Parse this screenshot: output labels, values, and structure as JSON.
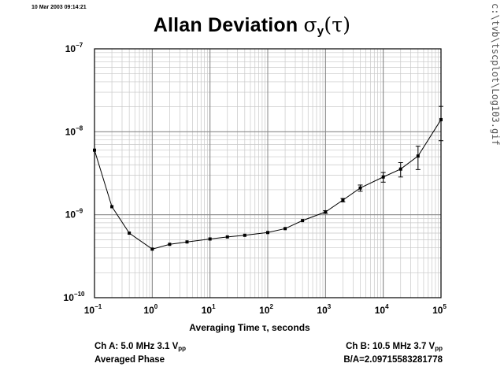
{
  "timestamp": "10 Mar 2003 09:14:21",
  "file_path": "c:\\tvb\\tscplot\\Log103.gif",
  "title": {
    "main": "Allan Deviation ",
    "symbol": "σ",
    "sub": "y",
    "arg": "(τ)"
  },
  "footer": {
    "left_line1_prefix": "Ch A: 5.0 MHz 3.1 V",
    "left_line1_sub": "pp",
    "left_line2": "Averaged Phase",
    "right_line1_prefix": "Ch B: 10.5 MHz 3.7 V",
    "right_line1_sub": "pp",
    "right_line2": "B/A=2.09715583281778"
  },
  "chart_data": {
    "type": "line",
    "title": "Allan Deviation σy(τ)",
    "xlabel": "Averaging Time τ, seconds",
    "ylabel": "",
    "xscale": "log",
    "yscale": "log",
    "xlim": [
      0.1,
      100000
    ],
    "ylim": [
      1e-10,
      1e-07
    ],
    "grid": true,
    "xticks": [
      {
        "base": "10",
        "exp": "−1"
      },
      {
        "base": "10",
        "exp": "0"
      },
      {
        "base": "10",
        "exp": "1"
      },
      {
        "base": "10",
        "exp": "2"
      },
      {
        "base": "10",
        "exp": "3"
      },
      {
        "base": "10",
        "exp": "4"
      },
      {
        "base": "10",
        "exp": "5"
      }
    ],
    "yticks": [
      {
        "base": "10",
        "exp": "−10"
      },
      {
        "base": "10",
        "exp": "−9"
      },
      {
        "base": "10",
        "exp": "−8"
      },
      {
        "base": "10",
        "exp": "−7"
      }
    ],
    "series": [
      {
        "points": [
          {
            "x": 0.1,
            "y": 6e-09,
            "err": 0
          },
          {
            "x": 0.2,
            "y": 1.25e-09,
            "err": 0
          },
          {
            "x": 0.4,
            "y": 6e-10,
            "err": 0
          },
          {
            "x": 1,
            "y": 3.85e-10,
            "err": 0
          },
          {
            "x": 2,
            "y": 4.4e-10,
            "err": 0
          },
          {
            "x": 4,
            "y": 4.7e-10,
            "err": 0
          },
          {
            "x": 10,
            "y": 5.1e-10,
            "err": 0
          },
          {
            "x": 20,
            "y": 5.4e-10,
            "err": 0
          },
          {
            "x": 40,
            "y": 5.65e-10,
            "err": 0
          },
          {
            "x": 100,
            "y": 6.1e-10,
            "err": 0
          },
          {
            "x": 200,
            "y": 6.8e-10,
            "err": 0
          },
          {
            "x": 400,
            "y": 8.5e-10,
            "err": 0
          },
          {
            "x": 1000,
            "y": 1.08e-09,
            "err": 4e-11
          },
          {
            "x": 2000,
            "y": 1.5e-09,
            "err": 7e-11
          },
          {
            "x": 4000,
            "y": 2.1e-09,
            "err": 1.8e-10
          },
          {
            "x": 10000,
            "y": 2.85e-09,
            "err": 3.8e-10
          },
          {
            "x": 20000,
            "y": 3.55e-09,
            "err": 7e-10
          },
          {
            "x": 40000,
            "y": 5.1e-09,
            "err": 1.6e-09
          },
          {
            "x": 100000,
            "y": 1.4e-08,
            "err": 6.2e-09
          }
        ]
      }
    ]
  }
}
